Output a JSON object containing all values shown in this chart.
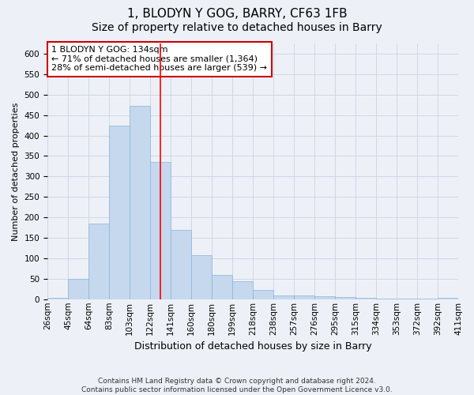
{
  "title": "1, BLODYN Y GOG, BARRY, CF63 1FB",
  "subtitle": "Size of property relative to detached houses in Barry",
  "xlabel": "Distribution of detached houses by size in Barry",
  "ylabel": "Number of detached properties",
  "bar_color": "#c5d8ee",
  "bar_edge_color": "#8ab4d8",
  "grid_color": "#c8d4e4",
  "background_color": "#edf1f7",
  "plot_bg_color": "#edf1f7",
  "vline_x": 5.5,
  "vline_color": "red",
  "annotation_text": "1 BLODYN Y GOG: 134sqm\n← 71% of detached houses are smaller (1,364)\n28% of semi-detached houses are larger (539) →",
  "annotation_box_color": "#ffffff",
  "annotation_box_edge": "#cc0000",
  "bin_labels": [
    "26sqm",
    "45sqm",
    "64sqm",
    "83sqm",
    "103sqm",
    "122sqm",
    "141sqm",
    "160sqm",
    "180sqm",
    "199sqm",
    "218sqm",
    "238sqm",
    "257sqm",
    "276sqm",
    "295sqm",
    "315sqm",
    "334sqm",
    "353sqm",
    "372sqm",
    "392sqm",
    "411sqm"
  ],
  "values": [
    4,
    50,
    185,
    424,
    472,
    336,
    170,
    107,
    60,
    44,
    22,
    10,
    10,
    7,
    5,
    3,
    2,
    1,
    1,
    4
  ],
  "ylim": [
    0,
    625
  ],
  "yticks": [
    0,
    50,
    100,
    150,
    200,
    250,
    300,
    350,
    400,
    450,
    500,
    550,
    600
  ],
  "footer": "Contains HM Land Registry data © Crown copyright and database right 2024.\nContains public sector information licensed under the Open Government Licence v3.0.",
  "title_fontsize": 11,
  "subtitle_fontsize": 10,
  "xlabel_fontsize": 9,
  "ylabel_fontsize": 8,
  "tick_fontsize": 7.5,
  "footer_fontsize": 6.5,
  "annotation_fontsize": 8
}
